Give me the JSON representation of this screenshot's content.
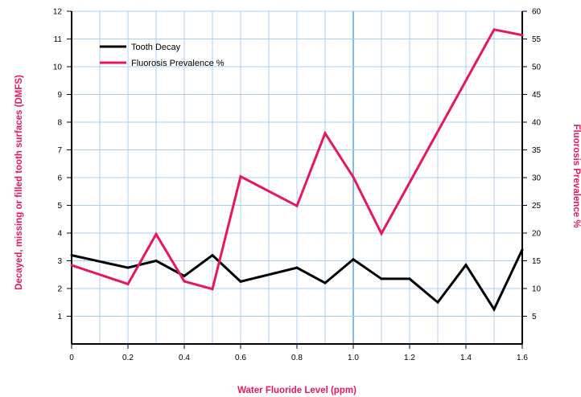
{
  "chart_data": {
    "type": "line",
    "xlabel": "Water Fluoride Level (ppm)",
    "ylabel": "Decayed, missing or filled tooth surfaces (DMFS)",
    "y2label": "Fluorosis Prevalence %",
    "xlim": [
      0,
      1.6
    ],
    "ylim": [
      0,
      12
    ],
    "y2lim": [
      0,
      60
    ],
    "x_ticks": [
      "0",
      "0.2",
      "0.4",
      "0.6",
      "0.8",
      "1.0",
      "1.2",
      "1.4",
      "1.6"
    ],
    "y_ticks": [
      "1",
      "2",
      "3",
      "4",
      "5",
      "6",
      "7",
      "8",
      "9",
      "10",
      "11",
      "12"
    ],
    "y2_ticks": [
      "5",
      "10",
      "15",
      "20",
      "25",
      "30",
      "35",
      "40",
      "45",
      "50",
      "55",
      "60"
    ],
    "grid": true,
    "legend_position": "top-left",
    "series": [
      {
        "name": "Tooth Decay",
        "axis": "left",
        "color": "#000000",
        "x": [
          0,
          0.2,
          0.3,
          0.4,
          0.5,
          0.6,
          0.8,
          0.9,
          1.0,
          1.1,
          1.2,
          1.3,
          1.4,
          1.5,
          1.6
        ],
        "values": [
          3.2,
          2.75,
          3.0,
          2.45,
          3.2,
          2.25,
          2.75,
          2.2,
          3.05,
          2.35,
          2.35,
          1.5,
          2.85,
          1.25,
          3.4
        ]
      },
      {
        "name": "Fluorosis Prevalence %",
        "axis": "right",
        "color": "#e8175d",
        "x": [
          0,
          0.2,
          0.3,
          0.4,
          0.5,
          0.6,
          0.8,
          0.9,
          1.0,
          1.1,
          1.4,
          1.5,
          1.6
        ],
        "values": [
          14.2,
          10.8,
          19.8,
          11.3,
          9.9,
          30.2,
          24.9,
          38.0,
          30.1,
          19.9,
          47.5,
          56.7,
          55.7
        ]
      }
    ]
  }
}
